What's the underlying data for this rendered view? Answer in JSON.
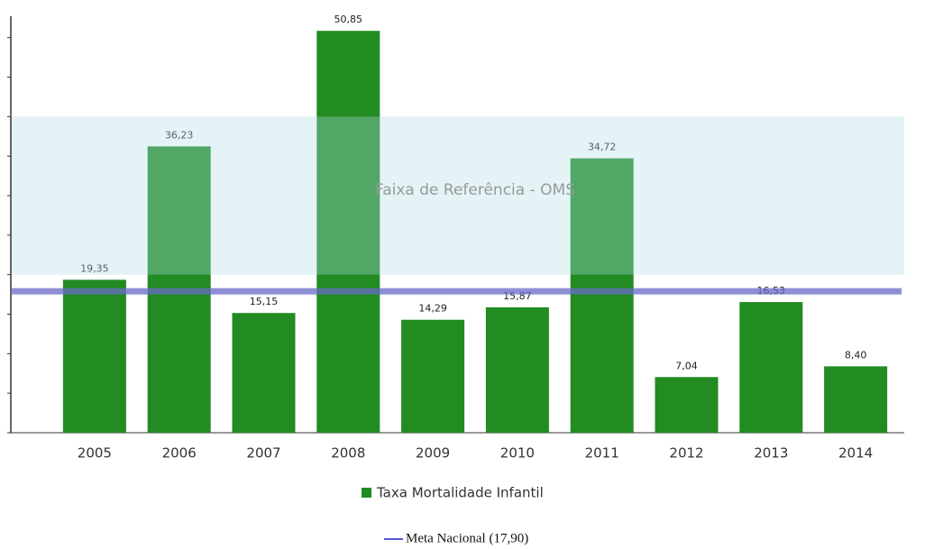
{
  "chart_data": {
    "type": "bar",
    "categories": [
      "2005",
      "2006",
      "2007",
      "2008",
      "2009",
      "2010",
      "2011",
      "2012",
      "2013",
      "2014"
    ],
    "series": [
      {
        "name": "Taxa Mortalidade Infantil",
        "color": "#228b22",
        "values": [
          19.35,
          36.23,
          15.15,
          50.85,
          14.29,
          15.87,
          34.72,
          7.04,
          16.53,
          8.4
        ],
        "value_labels": [
          "19,35",
          "36,23",
          "15,15",
          "50,85",
          "14,29",
          "15,87",
          "34,72",
          "7,04",
          "16,53",
          "8,40"
        ]
      }
    ],
    "ylim": [
      0,
      52.7
    ],
    "yticks": [
      0,
      5,
      10,
      15,
      20,
      25,
      30,
      35,
      40,
      45,
      50
    ],
    "reference_band": {
      "label": "Faixa de Referência - OMS",
      "range": [
        20,
        40
      ],
      "color": "#b0dce6"
    },
    "target_line": {
      "name": "Meta Nacional (17,90)",
      "value": 17.9,
      "color": "#6a6ac8"
    }
  }
}
